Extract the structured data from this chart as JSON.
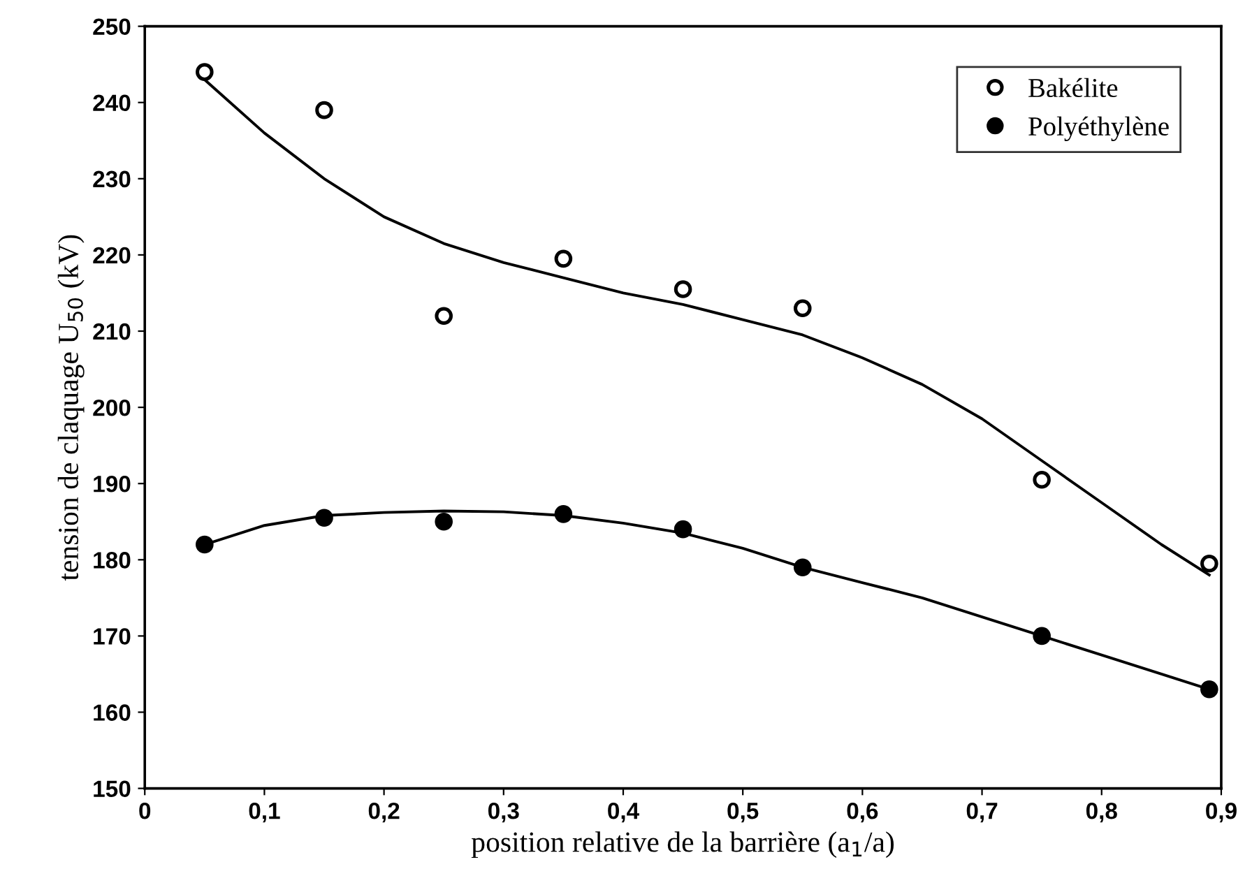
{
  "chart_data": {
    "type": "scatter",
    "xlabel": "position relative de la barrière (a$_{1}$/a)",
    "ylabel": "tension de claquage U$_{50}$ (kV)",
    "xlim": [
      0,
      0.9
    ],
    "ylim": [
      150,
      250
    ],
    "xticks": [
      0,
      {
        "value": 0.1,
        "label": "0,1"
      },
      {
        "value": 0.2,
        "label": "0,2"
      },
      {
        "value": 0.3,
        "label": "0,3"
      },
      {
        "value": 0.4,
        "label": "0,4"
      },
      {
        "value": 0.5,
        "label": "0,5"
      },
      {
        "value": 0.6,
        "label": "0,6"
      },
      {
        "value": 0.7,
        "label": "0,7"
      },
      {
        "value": 0.8,
        "label": "0,8"
      },
      {
        "value": 0.9,
        "label": "0,9"
      }
    ],
    "yticks": [
      150,
      160,
      170,
      180,
      190,
      200,
      210,
      220,
      230,
      240,
      250
    ],
    "grid": false,
    "legend": "top right",
    "series": [
      {
        "name": "Bakélite",
        "marker": "circle",
        "color": "#ffffff",
        "x": [
          0.05,
          0.15,
          0.25,
          0.35,
          0.45,
          0.55,
          0.75,
          0.89
        ],
        "values": [
          244,
          239,
          212,
          219.5,
          215.5,
          213,
          190.5,
          179.5
        ]
      },
      {
        "name": "Polyéthylène",
        "marker": "circle",
        "color": "#000000",
        "x": [
          0.05,
          0.15,
          0.25,
          0.35,
          0.45,
          0.55,
          0.75,
          0.89
        ],
        "values": [
          182,
          185.5,
          185,
          186,
          184,
          179,
          170,
          163
        ]
      },
      {
        "type": "line",
        "marker": "none",
        "color": "#000000",
        "x": [
          0.05,
          0.1,
          0.15,
          0.2,
          0.25,
          0.3,
          0.35,
          0.4,
          0.45,
          0.5,
          0.55,
          0.6,
          0.65,
          0.7,
          0.75,
          0.8,
          0.85,
          0.89
        ],
        "values": [
          243,
          236,
          230,
          225,
          221.5,
          219,
          217,
          215,
          213.5,
          211.5,
          209.5,
          206.5,
          203,
          198.5,
          193,
          187.5,
          182,
          178
        ]
      },
      {
        "type": "line",
        "marker": "none",
        "color": "#000000",
        "x": [
          0.05,
          0.1,
          0.15,
          0.2,
          0.25,
          0.3,
          0.35,
          0.4,
          0.45,
          0.5,
          0.55,
          0.6,
          0.65,
          0.7,
          0.75,
          0.8,
          0.85,
          0.89
        ],
        "values": [
          182,
          184.5,
          185.8,
          186.2,
          186.4,
          186.3,
          185.8,
          184.8,
          183.5,
          181.5,
          179,
          177,
          175,
          172.5,
          170,
          167.5,
          165,
          163
        ]
      }
    ]
  }
}
